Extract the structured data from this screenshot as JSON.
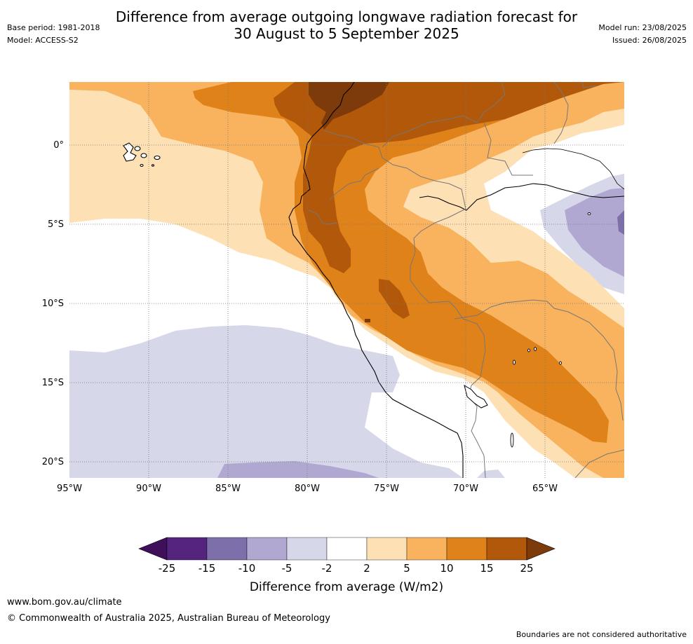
{
  "title": {
    "line1": "Difference from average outgoing longwave radiation forecast for",
    "line2": "30 August to 5 September 2025"
  },
  "meta_left": {
    "base_period": "Base period: 1981-2018",
    "model": "Model: ACCESS-S2"
  },
  "meta_right": {
    "model_run": "Model run: 23/08/2025",
    "issued": "Issued: 26/08/2025"
  },
  "map": {
    "lon_labels": [
      "95°W",
      "90°W",
      "85°W",
      "80°W",
      "75°W",
      "70°W",
      "65°W"
    ],
    "lat_labels": [
      "0°",
      "5°S",
      "10°S",
      "15°S",
      "20°S"
    ]
  },
  "colorbar": {
    "ticks": [
      "-25",
      "-15",
      "-10",
      "-5",
      "-2",
      "2",
      "5",
      "10",
      "15",
      "25"
    ],
    "colors": [
      "#3f0f5a",
      "#54247f",
      "#7d70aa",
      "#b0a8d0",
      "#d7d7ea",
      "#ffffff",
      "#fde0b4",
      "#f9b35f",
      "#e0821a",
      "#b2580a",
      "#7d3a0a"
    ],
    "label": "Difference from average (W/m2)"
  },
  "footer": {
    "url": "www.bom.gov.au/climate",
    "copyright": "© Commonwealth of Australia 2025, Australian Bureau of Meteorology",
    "note": "Boundaries are not considered authoritative"
  }
}
